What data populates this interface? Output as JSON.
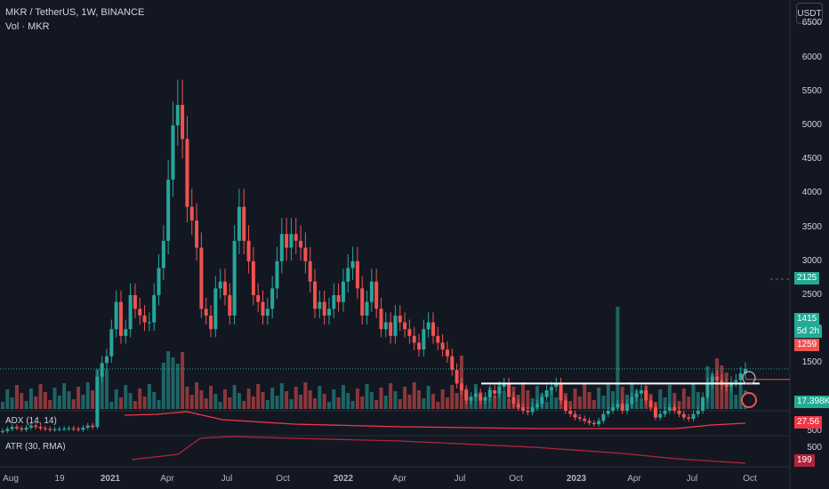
{
  "header": {
    "symbol": "MKR / TetherUS, 1W, BINANCE",
    "volume_label": "Vol · MKR"
  },
  "currency_button": "USDT",
  "badges": {
    "last_price": "1415",
    "countdown": "5d 2h",
    "line_level": "1259",
    "dashed_level": "2125",
    "volume": "17.398K",
    "adx": "27.56",
    "atr": "199"
  },
  "indicators": {
    "adx_label": "ADX (14, 14)",
    "atr_label": "ATR (30, RMA)",
    "atr_scale_label": "500"
  },
  "colors": {
    "up": "#26a69a",
    "down": "#ef5350",
    "background": "#131722",
    "adx_line": "#f23645",
    "atr_line": "#b2243c",
    "level_line": "#ffffff"
  },
  "chart_data": {
    "type": "candlestick",
    "interval": "1W",
    "y_axis": {
      "ticks": [
        500,
        1500,
        2000,
        2500,
        3000,
        3500,
        4000,
        4500,
        5000,
        5500,
        6000,
        6500
      ],
      "scale": "linear"
    },
    "x_axis": {
      "ticks": [
        "Aug",
        "19",
        "2021",
        "Apr",
        "Jul",
        "Oct",
        "2022",
        "Apr",
        "Jul",
        "Oct",
        "2023",
        "Apr",
        "Jul",
        "Oct"
      ]
    },
    "horizontal_line": {
      "price": 1259,
      "from_label": "Jul 2022"
    },
    "close_path": [
      [
        0,
        500
      ],
      [
        2,
        560
      ],
      [
        4,
        520
      ],
      [
        6,
        580
      ],
      [
        8,
        540
      ],
      [
        10,
        520
      ],
      [
        12,
        530
      ],
      [
        14,
        540
      ],
      [
        16,
        520
      ],
      [
        18,
        580
      ],
      [
        19,
        560
      ],
      [
        20,
        1300
      ],
      [
        21,
        1500
      ],
      [
        22,
        1600
      ],
      [
        24,
        2400
      ],
      [
        25,
        1900
      ],
      [
        26,
        2000
      ],
      [
        27,
        2500
      ],
      [
        28,
        2300
      ],
      [
        30,
        2100
      ],
      [
        31,
        2100
      ],
      [
        32,
        2500
      ],
      [
        34,
        3300
      ],
      [
        35,
        4200
      ],
      [
        36,
        5000
      ],
      [
        37,
        5300
      ],
      [
        38,
        4800
      ],
      [
        39,
        3800
      ],
      [
        40,
        3600
      ],
      [
        41,
        3200
      ],
      [
        42,
        2300
      ],
      [
        43,
        2200
      ],
      [
        44,
        2000
      ],
      [
        45,
        2600
      ],
      [
        46,
        2700
      ],
      [
        47,
        2500
      ],
      [
        48,
        2200
      ],
      [
        49,
        3300
      ],
      [
        50,
        3800
      ],
      [
        51,
        3300
      ],
      [
        52,
        3000
      ],
      [
        53,
        2500
      ],
      [
        54,
        2400
      ],
      [
        55,
        2200
      ],
      [
        56,
        2300
      ],
      [
        57,
        2600
      ],
      [
        58,
        3000
      ],
      [
        59,
        3400
      ],
      [
        60,
        3200
      ],
      [
        61,
        3400
      ],
      [
        62,
        3300
      ],
      [
        63,
        3200
      ],
      [
        64,
        3000
      ],
      [
        65,
        2700
      ],
      [
        66,
        2300
      ],
      [
        67,
        2400
      ],
      [
        68,
        2200
      ],
      [
        69,
        2300
      ],
      [
        70,
        2500
      ],
      [
        71,
        2400
      ],
      [
        72,
        2700
      ],
      [
        73,
        2900
      ],
      [
        74,
        3000
      ],
      [
        75,
        2600
      ],
      [
        76,
        2200
      ],
      [
        77,
        2400
      ],
      [
        78,
        2700
      ],
      [
        79,
        2300
      ],
      [
        80,
        2000
      ],
      [
        81,
        2100
      ],
      [
        82,
        1900
      ],
      [
        83,
        2200
      ],
      [
        84,
        2100
      ],
      [
        85,
        2000
      ],
      [
        86,
        1900
      ],
      [
        87,
        1800
      ],
      [
        88,
        1700
      ],
      [
        89,
        2000
      ],
      [
        90,
        2100
      ],
      [
        91,
        1900
      ],
      [
        92,
        1800
      ],
      [
        93,
        1700
      ],
      [
        94,
        1600
      ],
      [
        95,
        1400
      ],
      [
        96,
        1200
      ],
      [
        97,
        1100
      ],
      [
        98,
        950
      ],
      [
        99,
        1000
      ],
      [
        100,
        1050
      ],
      [
        101,
        950
      ],
      [
        102,
        1000
      ],
      [
        103,
        1100
      ],
      [
        104,
        1050
      ],
      [
        105,
        1150
      ],
      [
        106,
        1200
      ],
      [
        107,
        1000
      ],
      [
        108,
        900
      ],
      [
        109,
        850
      ],
      [
        110,
        800
      ],
      [
        111,
        780
      ],
      [
        112,
        850
      ],
      [
        113,
        900
      ],
      [
        114,
        1000
      ],
      [
        115,
        1100
      ],
      [
        116,
        1150
      ],
      [
        117,
        1200
      ],
      [
        118,
        950
      ],
      [
        119,
        800
      ],
      [
        120,
        750
      ],
      [
        121,
        700
      ],
      [
        122,
        680
      ],
      [
        123,
        650
      ],
      [
        124,
        620
      ],
      [
        125,
        600
      ],
      [
        126,
        650
      ],
      [
        127,
        750
      ],
      [
        128,
        800
      ],
      [
        129,
        850
      ],
      [
        130,
        900
      ],
      [
        131,
        800
      ],
      [
        132,
        900
      ],
      [
        133,
        1000
      ],
      [
        134,
        1050
      ],
      [
        135,
        1100
      ],
      [
        136,
        950
      ],
      [
        137,
        850
      ],
      [
        138,
        700
      ],
      [
        139,
        750
      ],
      [
        140,
        800
      ],
      [
        141,
        850
      ],
      [
        142,
        800
      ],
      [
        143,
        750
      ],
      [
        144,
        700
      ],
      [
        145,
        680
      ],
      [
        146,
        750
      ],
      [
        147,
        800
      ],
      [
        148,
        1000
      ],
      [
        149,
        1200
      ],
      [
        150,
        1300
      ],
      [
        151,
        1250
      ],
      [
        152,
        1180
      ],
      [
        153,
        1150
      ],
      [
        154,
        1220
      ],
      [
        155,
        1250
      ],
      [
        156,
        1350
      ],
      [
        157,
        1415
      ]
    ]
  }
}
